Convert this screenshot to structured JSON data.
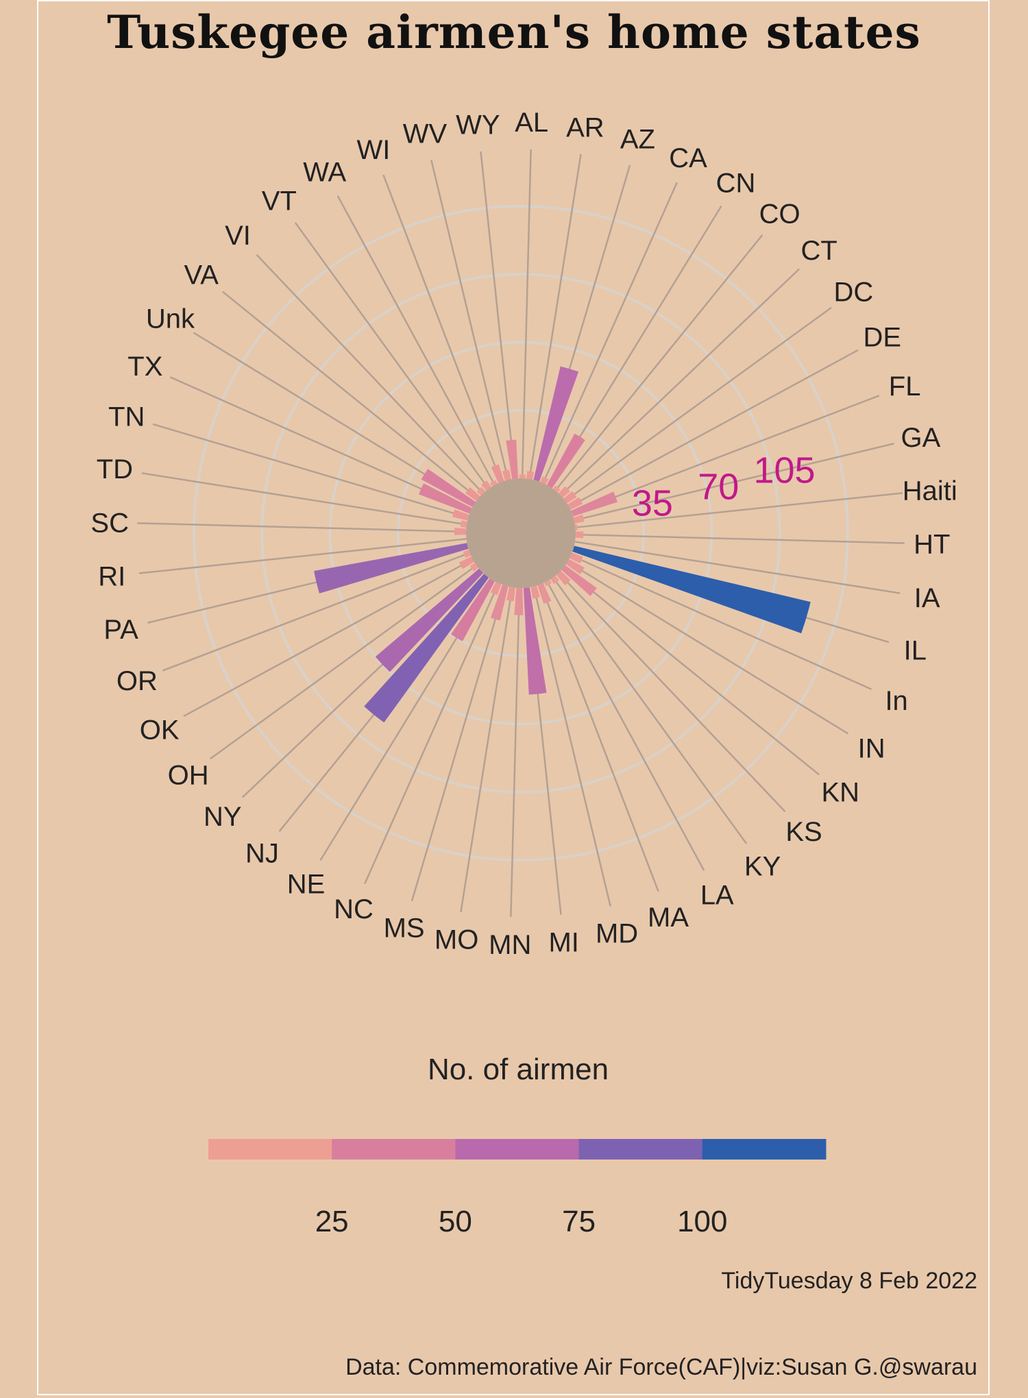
{
  "title": "Tuskegee airmen's home states",
  "chart_data": {
    "type": "polar-bar",
    "categories": [
      "AL",
      "AR",
      "AZ",
      "CA",
      "CN",
      "CO",
      "CT",
      "DC",
      "DE",
      "FL",
      "GA",
      "Haiti",
      "HT",
      "IA",
      "IL",
      "In",
      "IN",
      "KN",
      "KS",
      "KY",
      "LA",
      "MA",
      "MD",
      "MI",
      "MN",
      "MO",
      "MS",
      "NC",
      "NE",
      "NJ",
      "NY",
      "OH",
      "OK",
      "OR",
      "PA",
      "RI",
      "SC",
      "TD",
      "TN",
      "TX",
      "Unk",
      "VA",
      "VI",
      "VT",
      "WA",
      "WI",
      "WV",
      "WY"
    ],
    "values": [
      2,
      4,
      60,
      3,
      30,
      2,
      5,
      6,
      7,
      24,
      5,
      1,
      4,
      0,
      125,
      6,
      9,
      20,
      7,
      3,
      2,
      10,
      6,
      55,
      14,
      7,
      18,
      6,
      35,
      92,
      70,
      3,
      7,
      3,
      80,
      0,
      6,
      3,
      8,
      28,
      30,
      7,
      3,
      4,
      2,
      9,
      5,
      20
    ],
    "radial_ticks": [
      35,
      70,
      105
    ],
    "grid": true
  },
  "legend": {
    "title": "No. of airmen",
    "breaks": [
      25,
      50,
      75,
      100
    ],
    "colors": [
      "#ee9f94",
      "#d97f9e",
      "#b86aad",
      "#7e62b2",
      "#2c5eac"
    ]
  },
  "captions": {
    "date": "TidyTuesday 8 Feb 2022",
    "source": "Data: Commemorative Air Force(CAF)|viz:Susan G.@swarau"
  },
  "style": {
    "background": "#e8c8ab",
    "grid_color": "#d7d2cc",
    "spoke_color": "#b3a193",
    "center_color": "#b8a391",
    "ring_label_color": "#c0198a"
  }
}
